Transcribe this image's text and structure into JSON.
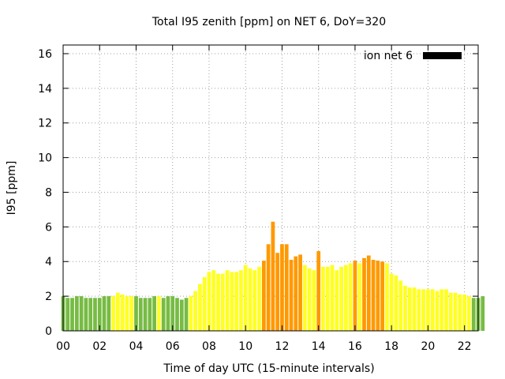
{
  "chart_data": {
    "type": "bar",
    "title": "Total I95 zenith [ppm] on NET 6, DoY=320",
    "xlabel": "Time of day UTC (15-minute intervals)",
    "ylabel": "I95 [ppm]",
    "xlim": [
      0,
      22.75
    ],
    "ylim": [
      0,
      16.5
    ],
    "x_ticks": [
      "00",
      "02",
      "04",
      "06",
      "08",
      "10",
      "12",
      "14",
      "16",
      "18",
      "20",
      "22"
    ],
    "y_ticks": [
      "0",
      "2",
      "4",
      "6",
      "8",
      "10",
      "12",
      "14",
      "16"
    ],
    "legend": {
      "label": "ion net 6",
      "position": "top-right",
      "color": "#000000"
    },
    "grid": true,
    "colors": {
      "low": "#77bb44",
      "mid": "#ffff22",
      "high": "#ff9900"
    },
    "interval_hours": 0.25,
    "values": [
      2.0,
      1.9,
      1.9,
      2.0,
      2.0,
      1.9,
      1.9,
      1.9,
      1.9,
      2.0,
      2.0,
      2.0,
      2.2,
      2.1,
      2.0,
      2.0,
      2.0,
      1.9,
      1.9,
      1.9,
      2.0,
      2.0,
      1.9,
      2.0,
      2.0,
      1.9,
      1.8,
      1.9,
      2.0,
      2.3,
      2.7,
      3.1,
      3.4,
      3.5,
      3.3,
      3.3,
      3.5,
      3.4,
      3.4,
      3.5,
      3.8,
      3.6,
      3.5,
      3.7,
      4.05,
      5.0,
      6.3,
      4.5,
      5.0,
      5.0,
      4.1,
      4.3,
      4.4,
      3.8,
      3.6,
      3.5,
      4.6,
      3.7,
      3.7,
      3.8,
      3.5,
      3.7,
      3.8,
      3.9,
      4.05,
      3.9,
      4.2,
      4.35,
      4.1,
      4.05,
      4.0,
      3.9,
      3.3,
      3.2,
      2.9,
      2.6,
      2.5,
      2.5,
      2.4,
      2.4,
      2.4,
      2.4,
      2.3,
      2.4,
      2.4,
      2.2,
      2.2,
      2.1,
      2.1,
      2.0,
      1.9,
      1.9,
      2.0
    ],
    "categories": [
      "low",
      "low",
      "low",
      "low",
      "low",
      "low",
      "low",
      "low",
      "low",
      "low",
      "low",
      "mid",
      "mid",
      "mid",
      "mid",
      "mid",
      "low",
      "low",
      "low",
      "low",
      "low",
      "mid",
      "low",
      "low",
      "low",
      "low",
      "low",
      "low",
      "mid",
      "mid",
      "mid",
      "mid",
      "mid",
      "mid",
      "mid",
      "mid",
      "mid",
      "mid",
      "mid",
      "mid",
      "mid",
      "mid",
      "mid",
      "mid",
      "high",
      "high",
      "high",
      "high",
      "high",
      "high",
      "high",
      "high",
      "high",
      "mid",
      "mid",
      "mid",
      "high",
      "mid",
      "mid",
      "mid",
      "mid",
      "mid",
      "mid",
      "mid",
      "high",
      "mid",
      "high",
      "high",
      "high",
      "high",
      "high",
      "mid",
      "mid",
      "mid",
      "mid",
      "mid",
      "mid",
      "mid",
      "mid",
      "mid",
      "mid",
      "mid",
      "mid",
      "mid",
      "mid",
      "mid",
      "mid",
      "mid",
      "mid",
      "mid",
      "low",
      "low",
      "low"
    ]
  }
}
